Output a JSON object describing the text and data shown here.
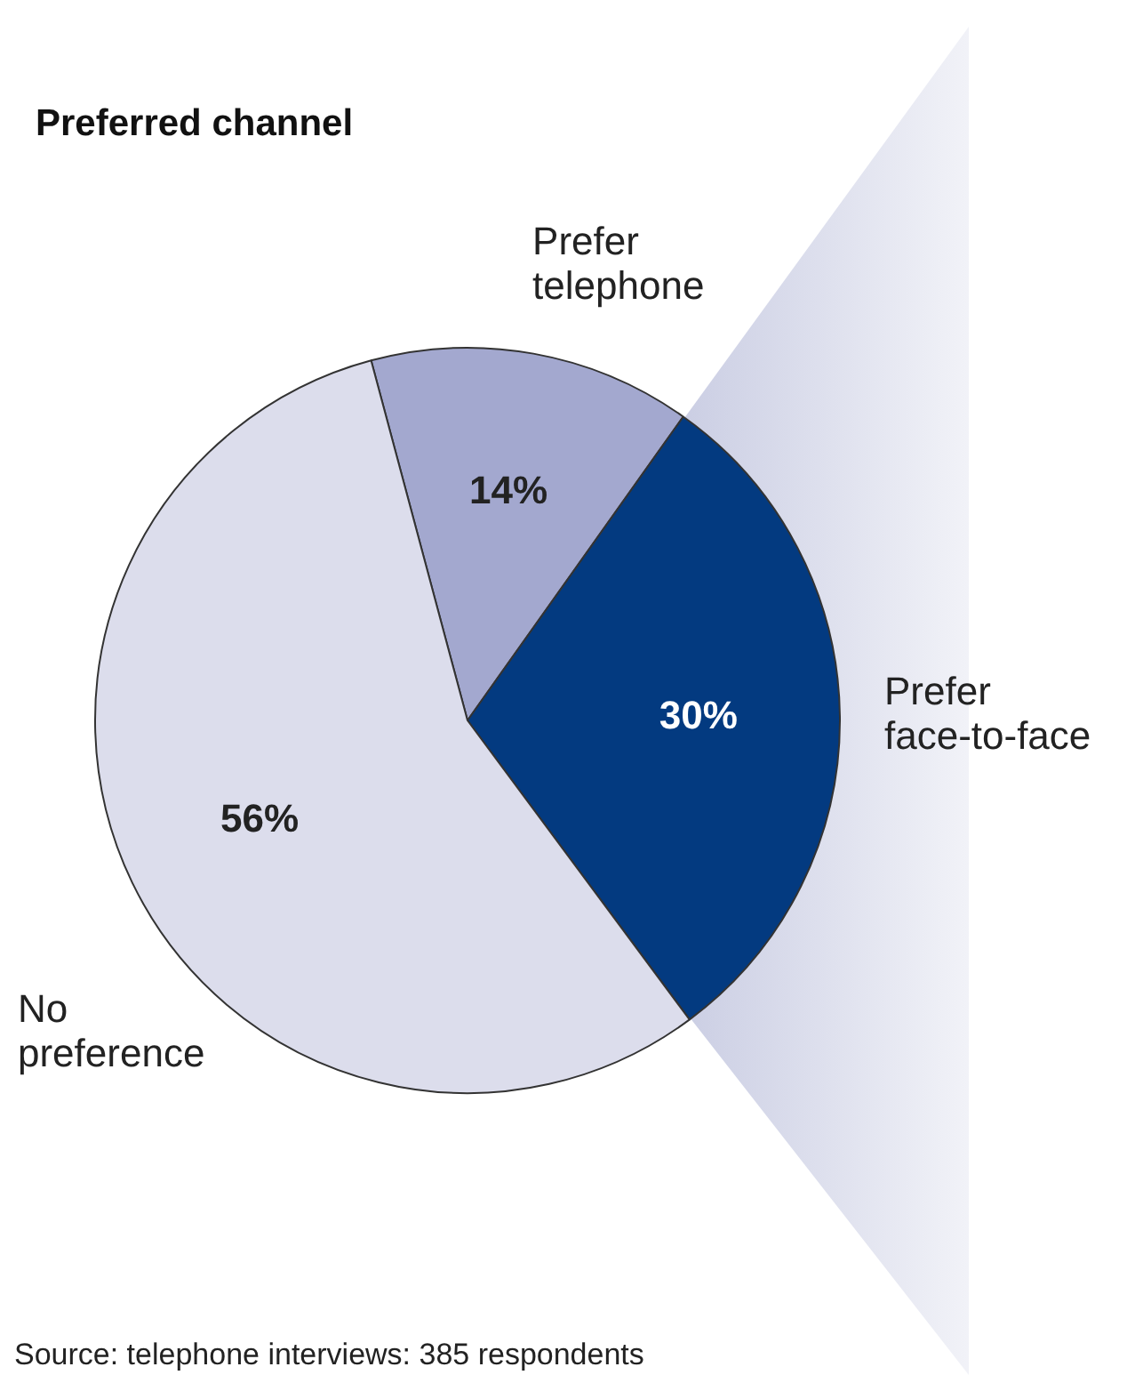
{
  "chart_data": {
    "type": "pie",
    "title": "Preferred channel",
    "categories": [
      "Prefer telephone",
      "Prefer face-to-face",
      "No preference"
    ],
    "values": [
      14,
      30,
      56
    ],
    "colors": [
      "#a3a8cf",
      "#033a80",
      "#dcddec"
    ],
    "value_labels": [
      "14%",
      "30%",
      "56%"
    ],
    "legend": false,
    "annotations": [
      "Source: telephone interviews: 385 respondents"
    ]
  }
}
